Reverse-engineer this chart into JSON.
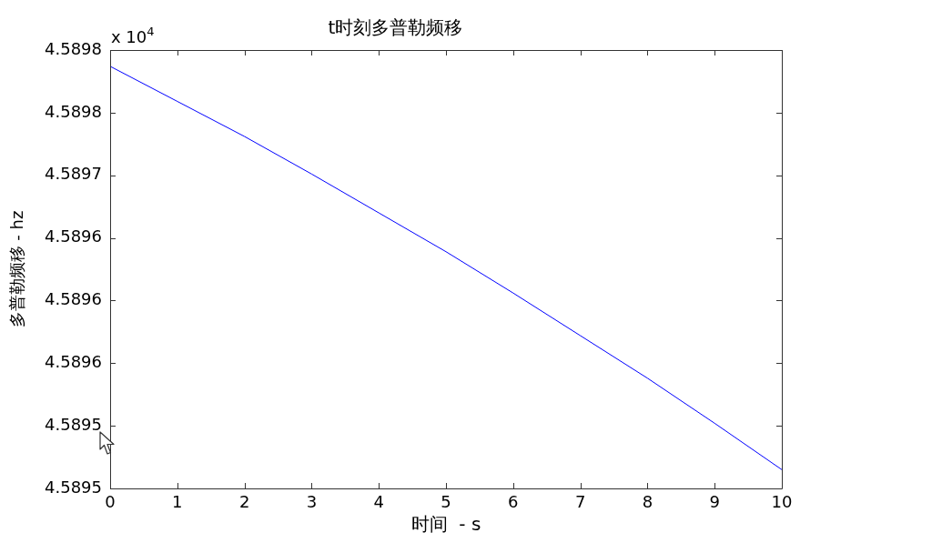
{
  "chart_data": {
    "type": "line",
    "title": "t时刻多普勒频移",
    "xlabel": "时间  - s",
    "ylabel": "多普勒频移 - hz",
    "annotations": [
      "x 10$^{4}$"
    ],
    "x": [
      0,
      1,
      2,
      3,
      4,
      5,
      6,
      7,
      8,
      9,
      10
    ],
    "values": [
      4.589787,
      4.589759,
      4.589731,
      4.589701,
      4.58967,
      4.589639,
      4.589606,
      4.589572,
      4.589538,
      4.589502,
      4.589465
    ],
    "color": "#0000ff",
    "xlim": [
      0,
      10
    ],
    "xticks": [
      0,
      1,
      2,
      3,
      4,
      5,
      6,
      7,
      8,
      9,
      10
    ],
    "ylim": [
      4.58945,
      4.5898
    ],
    "yticks": [
      {
        "value": 4.58945,
        "label": "4.5895"
      },
      4.5895,
      {
        "value": 4.58955,
        "label": "4.5896"
      },
      4.5896,
      {
        "value": 4.58965,
        "label": "4.5896"
      },
      4.5897,
      {
        "value": 4.58975,
        "label": "4.5898"
      },
      4.5898
    ]
  }
}
